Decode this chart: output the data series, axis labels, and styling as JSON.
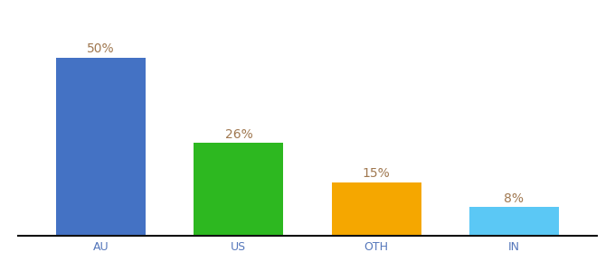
{
  "categories": [
    "AU",
    "US",
    "OTH",
    "IN"
  ],
  "values": [
    50,
    26,
    15,
    8
  ],
  "labels": [
    "50%",
    "26%",
    "15%",
    "8%"
  ],
  "bar_colors": [
    "#4472c4",
    "#2db820",
    "#f5a700",
    "#5bc8f5"
  ],
  "background_color": "#ffffff",
  "ylim": [
    0,
    60
  ],
  "label_color": "#a07850",
  "label_fontsize": 10,
  "tick_fontsize": 9,
  "tick_color": "#5577bb",
  "bar_width": 0.65
}
